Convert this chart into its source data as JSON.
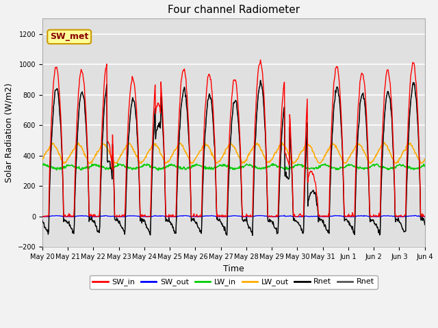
{
  "title": "Four channel Radiometer",
  "xlabel": "Time",
  "ylabel": "Solar Radiation (W/m2)",
  "ylim": [
    -200,
    1300
  ],
  "yticks": [
    -200,
    0,
    200,
    400,
    600,
    800,
    1000,
    1200
  ],
  "n_days": 15,
  "colors": {
    "SW_in": "#ff0000",
    "SW_out": "#0000ff",
    "LW_in": "#00cc00",
    "LW_out": "#ffaa00",
    "Rnet_black": "#000000",
    "Rnet_dark": "#555555"
  },
  "annotation_text": "SW_met",
  "annotation_facecolor": "#ffff99",
  "annotation_edgecolor": "#cc9900",
  "annotation_text_color": "#880000",
  "bg_color": "#e8e8e8",
  "plot_bg_color": "#e0e0e0",
  "grid_color": "#ffffff",
  "fig_bg_color": "#f2f2f2",
  "legend_entries": [
    "SW_in",
    "SW_out",
    "LW_in",
    "LW_out",
    "Rnet",
    "Rnet"
  ],
  "legend_colors": [
    "#ff0000",
    "#0000ff",
    "#00cc00",
    "#ffaa00",
    "#000000",
    "#555555"
  ],
  "day_labels": [
    "May 20",
    "May 21",
    "May 22",
    "May 23",
    "May 24",
    "May 25",
    "May 26",
    "May 27",
    "May 28",
    "May 29",
    "May 30",
    "May 31",
    "Jun 1",
    "Jun 2",
    "Jun 3",
    "Jun 4"
  ]
}
